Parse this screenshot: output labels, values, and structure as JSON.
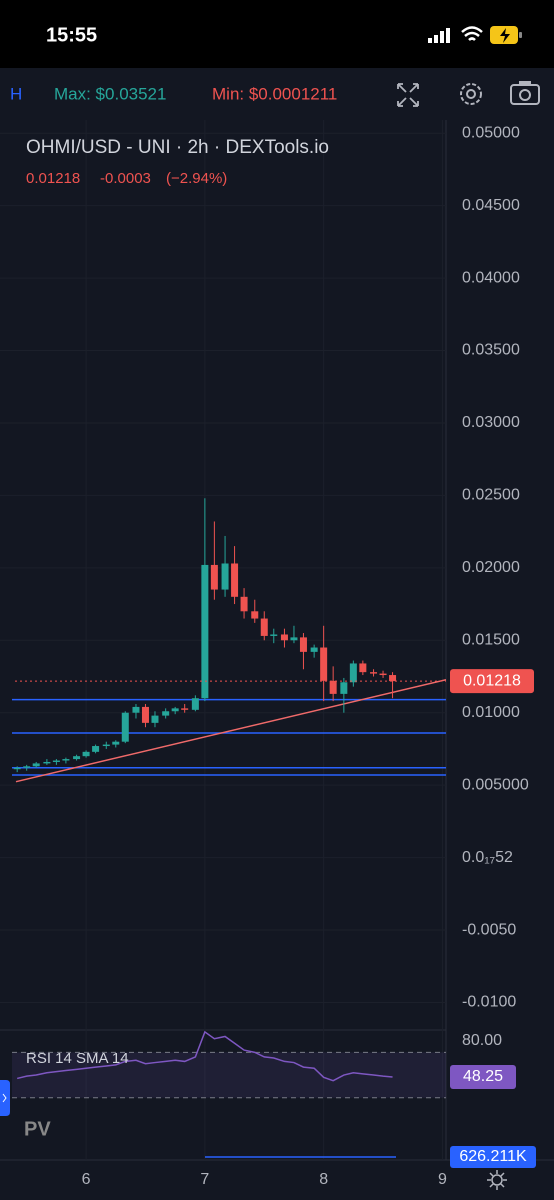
{
  "status_bar": {
    "time": "15:55"
  },
  "toolbar": {
    "interval": "H",
    "max": "Max: $0.03521",
    "min": "Min: $0.0001211"
  },
  "chart_data": {
    "type": "candlestick",
    "title": "OHMI/USD - UNI · 2h · DEXTools.io",
    "quote": {
      "last": "0.01218",
      "change": "-0.0003",
      "change_pct": "(−2.94%)"
    },
    "x": [
      5.42,
      5.5,
      5.58,
      5.67,
      5.75,
      5.83,
      5.92,
      6,
      6.08,
      6.17,
      6.25,
      6.33,
      6.42,
      6.5,
      6.58,
      6.67,
      6.75,
      6.83,
      6.92,
      7,
      7.08,
      7.17,
      7.25,
      7.33,
      7.42,
      7.5,
      7.58,
      7.67,
      7.75,
      7.83,
      7.92,
      8,
      8.08,
      8.17,
      8.25,
      8.33,
      8.42,
      8.5,
      8.58
    ],
    "open": [
      0.0061,
      0.0062,
      0.0063,
      0.0065,
      0.0066,
      0.0067,
      0.0068,
      0.007,
      0.0073,
      0.0077,
      0.0078,
      0.008,
      0.01,
      0.0104,
      0.0093,
      0.0098,
      0.0101,
      0.0103,
      0.0102,
      0.011,
      0.0202,
      0.0185,
      0.0203,
      0.018,
      0.017,
      0.0165,
      0.0153,
      0.0154,
      0.015,
      0.0152,
      0.0142,
      0.0145,
      0.0122,
      0.0113,
      0.0121,
      0.0134,
      0.0128,
      0.0127,
      0.0126
    ],
    "high": [
      0.0063,
      0.0064,
      0.0066,
      0.0068,
      0.0068,
      0.0069,
      0.0071,
      0.0074,
      0.0078,
      0.008,
      0.0081,
      0.0101,
      0.0106,
      0.0106,
      0.0101,
      0.0103,
      0.0104,
      0.0106,
      0.0112,
      0.0248,
      0.0232,
      0.0222,
      0.0215,
      0.0186,
      0.0178,
      0.017,
      0.0158,
      0.0158,
      0.016,
      0.0155,
      0.0147,
      0.016,
      0.0132,
      0.0124,
      0.0136,
      0.0136,
      0.013,
      0.0129,
      0.0128
    ],
    "low": [
      0.0059,
      0.006,
      0.0062,
      0.0064,
      0.0064,
      0.0065,
      0.0067,
      0.0069,
      0.0072,
      0.0075,
      0.0076,
      0.0079,
      0.0096,
      0.009,
      0.009,
      0.0096,
      0.0099,
      0.01,
      0.0101,
      0.0108,
      0.0178,
      0.018,
      0.0175,
      0.0165,
      0.0162,
      0.015,
      0.0148,
      0.0145,
      0.0148,
      0.013,
      0.0138,
      0.0108,
      0.0108,
      0.01,
      0.0118,
      0.0126,
      0.0125,
      0.0124,
      0.011
    ],
    "close": [
      0.0062,
      0.0063,
      0.0065,
      0.0066,
      0.0067,
      0.0068,
      0.007,
      0.0073,
      0.0077,
      0.0078,
      0.008,
      0.01,
      0.0104,
      0.0093,
      0.0098,
      0.0101,
      0.0103,
      0.0102,
      0.011,
      0.0202,
      0.0185,
      0.0203,
      0.018,
      0.017,
      0.0165,
      0.0153,
      0.0154,
      0.015,
      0.0152,
      0.0142,
      0.0145,
      0.0122,
      0.0113,
      0.0121,
      0.0134,
      0.0128,
      0.0127,
      0.0126,
      0.01218
    ],
    "up_color": "#26a69a",
    "down_color": "#ef5350",
    "xlim": [
      5.41,
      9.03
    ],
    "xticks": [
      6,
      7,
      8,
      9
    ],
    "ylim": [
      -0.0119,
      0.0545
    ],
    "yticks": [
      {
        "value": 0.05,
        "label": "0.05000"
      },
      {
        "value": 0.045,
        "label": "0.04500"
      },
      {
        "value": 0.04,
        "label": "0.04000"
      },
      {
        "value": 0.035,
        "label": "0.03500"
      },
      {
        "value": 0.03,
        "label": "0.03000"
      },
      {
        "value": 0.025,
        "label": "0.02500"
      },
      {
        "value": 0.02,
        "label": "0.02000"
      },
      {
        "value": 0.015,
        "label": "0.01500"
      },
      {
        "value": 0.01,
        "label": "0.01000"
      },
      {
        "value": 0.005,
        "label": "0.005000"
      },
      {
        "value": 5.2e-19,
        "label": "0.0₁₇52"
      },
      {
        "value": -0.005,
        "label": "-0.0050"
      },
      {
        "value": -0.01,
        "label": "-0.0100"
      }
    ],
    "grid": true,
    "last_price": 0.01218,
    "hlines": [
      0.0109,
      0.0086,
      0.0062,
      0.0057
    ],
    "hline_color": "#2962ff",
    "trendline": {
      "x": [
        5.41,
        9.03
      ],
      "y": [
        0.00524,
        0.01228
      ],
      "color": "#f06a6a"
    },
    "rsi": {
      "title": "RSI 14 SMA 14",
      "values": [
        47,
        49,
        50,
        52,
        53,
        54,
        55,
        56,
        57,
        58,
        59,
        62,
        63,
        60,
        61,
        62,
        63,
        62,
        66,
        88,
        82,
        84,
        78,
        72,
        70,
        66,
        65,
        62,
        61,
        57,
        56,
        48,
        45,
        50,
        52,
        51,
        50,
        49,
        48.25
      ],
      "ylim": [
        28,
        89.7
      ],
      "yticks": [
        {
          "value": 80,
          "label": "80.00"
        }
      ],
      "bands": [
        70,
        30
      ],
      "color": "#7e57c2"
    },
    "volume": {
      "last": {
        "value": 626211,
        "label": "626.211K"
      }
    }
  }
}
